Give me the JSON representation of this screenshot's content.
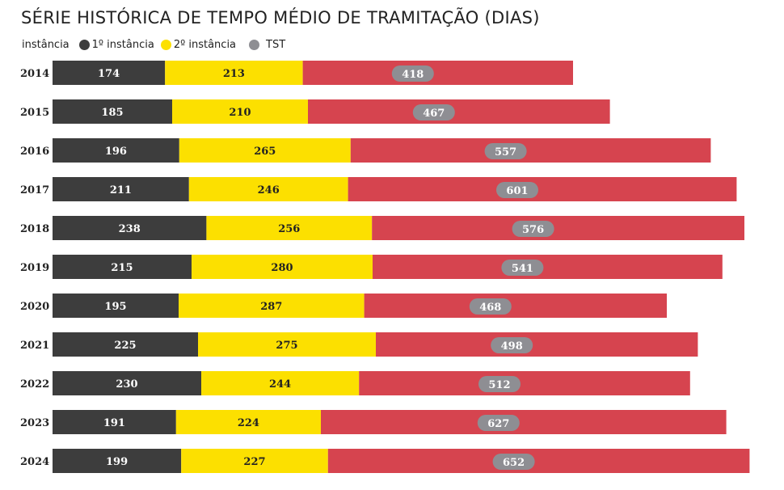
{
  "chart_data": {
    "type": "bar",
    "orientation": "horizontal",
    "stacked": true,
    "title": "SÉRIE HISTÓRICA DE TEMPO MÉDIO DE TRAMITAÇÃO (DIAS)",
    "legend_title": "instância",
    "legend_position": "top-left",
    "xlabel": "",
    "ylabel": "",
    "grid": false,
    "categories": [
      "2014",
      "2015",
      "2016",
      "2017",
      "2018",
      "2019",
      "2020",
      "2021",
      "2022",
      "2023",
      "2024"
    ],
    "series": [
      {
        "name": "1º instância",
        "color": "#3d3d3d",
        "values": [
          174,
          185,
          196,
          211,
          238,
          215,
          195,
          225,
          230,
          191,
          199
        ]
      },
      {
        "name": "2º instância",
        "color": "#fce000",
        "values": [
          213,
          210,
          265,
          246,
          256,
          280,
          287,
          275,
          244,
          224,
          227
        ]
      },
      {
        "name": "TST",
        "color": "#d6444f",
        "legend_color": "#8e8e93",
        "values": [
          418,
          467,
          557,
          601,
          576,
          541,
          468,
          498,
          512,
          627,
          652
        ]
      }
    ],
    "label_badge_color": "#8e8e93"
  }
}
